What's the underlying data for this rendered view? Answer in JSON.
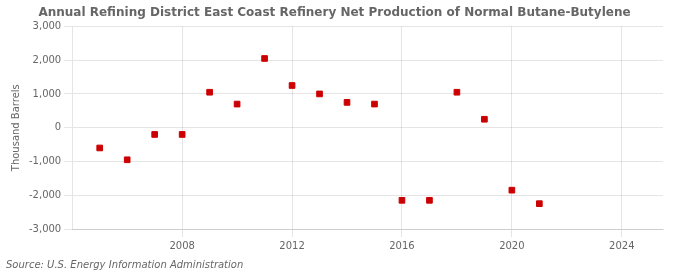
{
  "chart_data": {
    "type": "scatter",
    "title": "Annual Refining District East Coast Refinery Net Production of Normal Butane-Butylene",
    "ylabel": "Thousand Barrels",
    "annotation": "Source: U.S. Energy Information Administration",
    "x": [
      2005,
      2006,
      2007,
      2008,
      2009,
      2010,
      2011,
      2012,
      2013,
      2014,
      2015,
      2016,
      2017,
      2018,
      2019,
      2020,
      2021
    ],
    "values": [
      -600,
      -950,
      -200,
      -200,
      1050,
      700,
      2050,
      1250,
      1000,
      750,
      700,
      -2150,
      -2150,
      1050,
      250,
      -1850,
      -2250
    ],
    "color": "#cc0000",
    "marker": "square",
    "xlim": [
      2004.0,
      2025.5
    ],
    "xticks": [
      2008,
      2012,
      2016,
      2020,
      2024
    ],
    "ylim": [
      -3000,
      3000
    ],
    "yticks": [
      {
        "value": -3000,
        "label": "-3,000"
      },
      {
        "value": -2000,
        "label": "-2,000"
      },
      {
        "value": -1000,
        "label": "-1,000"
      },
      0,
      {
        "value": 1000,
        "label": "1,000"
      },
      {
        "value": 2000,
        "label": "2,000"
      },
      {
        "value": 3000,
        "label": "3,000"
      }
    ],
    "grid": true
  }
}
